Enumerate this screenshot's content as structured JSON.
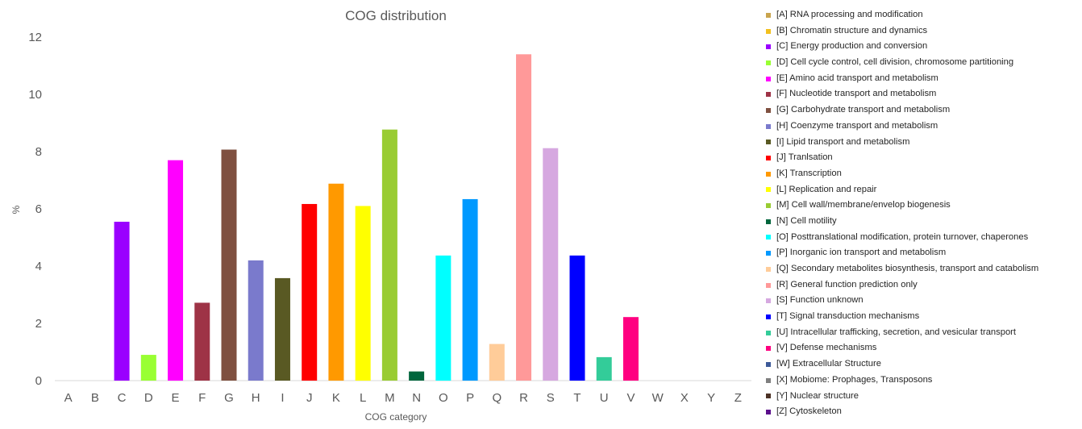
{
  "chart_data": {
    "type": "bar",
    "title": "COG distribution",
    "xlabel": "COG category",
    "ylabel": "%",
    "ylim": [
      0,
      12
    ],
    "yticks": [
      0,
      2,
      4,
      6,
      8,
      10,
      12
    ],
    "grid": false,
    "legend_position": "right",
    "categories": [
      "A",
      "B",
      "C",
      "D",
      "E",
      "F",
      "G",
      "H",
      "I",
      "J",
      "K",
      "L",
      "M",
      "N",
      "O",
      "P",
      "Q",
      "R",
      "S",
      "T",
      "U",
      "V",
      "W",
      "X",
      "Y",
      "Z"
    ],
    "values": [
      0,
      0,
      5.55,
      0.9,
      7.7,
      2.72,
      8.07,
      4.2,
      3.58,
      6.17,
      6.88,
      6.1,
      8.77,
      0.32,
      4.37,
      6.34,
      1.28,
      11.4,
      8.12,
      4.37,
      0.82,
      2.22,
      0,
      0,
      0,
      0
    ],
    "colors": [
      "#c9a44d",
      "#f2c01e",
      "#9a00ff",
      "#99ff33",
      "#ff00ff",
      "#9e3346",
      "#7f5040",
      "#7a7acc",
      "#595923",
      "#ff0000",
      "#ff9900",
      "#ffff00",
      "#99cc33",
      "#00663c",
      "#00ffff",
      "#0099ff",
      "#ffcc99",
      "#ff9999",
      "#d6a8e0",
      "#0000ff",
      "#33cc99",
      "#ff0080",
      "#3d5a99",
      "#7f7f7f",
      "#4c3226",
      "#5b0f8c"
    ],
    "legend": [
      "[A] RNA processing and modification",
      "[B] Chromatin structure and dynamics",
      "[C] Energy production and conversion",
      "[D] Cell cycle control, cell division, chromosome partitioning",
      "[E] Amino  acid transport and metabolism",
      "[F] Nucleotide transport and metabolism",
      "[G] Carbohydrate transport and metabolism",
      "[H] Coenzyme transport and metabolism",
      "[I] Lipid transport and metabolism",
      "[J] Tranlsation",
      "[K] Transcription",
      "[L] Replication and repair",
      "[M] Cell wall/membrane/envelop biogenesis",
      "[N] Cell motility",
      "[O] Posttranslational modification, protein turnover, chaperones",
      "[P] Inorganic ion transport and metabolism",
      "[Q] Secondary metabolites biosynthesis, transport and catabolism",
      "[R] General function prediction only",
      "[S] Function unknown",
      "[T] Signal transduction mechanisms",
      "[U] Intracellular trafficking, secretion, and vesicular transport",
      "[V] Defense mechanisms",
      "[W] Extracellular Structure",
      "[X] Mobiome: Prophages, Transposons",
      "[Y] Nuclear structure",
      "[Z] Cytoskeleton"
    ]
  }
}
